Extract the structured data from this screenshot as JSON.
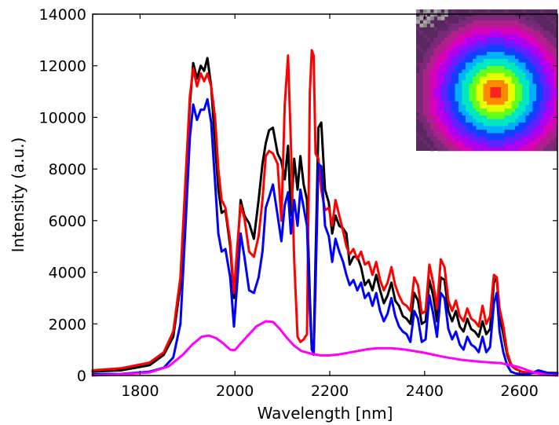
{
  "chart_data": {
    "type": "line",
    "title": "",
    "xlabel": "Wavelength [nm]",
    "ylabel": "Intensity (a.u.)",
    "xlim": [
      1700,
      2680
    ],
    "ylim": [
      0,
      14000
    ],
    "xticks": [
      1800,
      2000,
      2200,
      2400,
      2600
    ],
    "yticks": [
      0,
      2000,
      4000,
      6000,
      8000,
      10000,
      12000,
      14000
    ],
    "grid": false,
    "legend": "none",
    "series": [
      {
        "color": "#000000",
        "x": [
          1700,
          1760,
          1820,
          1850,
          1870,
          1885,
          1895,
          1905,
          1912,
          1920,
          1928,
          1935,
          1942,
          1950,
          1958,
          1965,
          1972,
          1980,
          1990,
          1998,
          2005,
          2012,
          2020,
          2030,
          2040,
          2050,
          2058,
          2065,
          2072,
          2080,
          2090,
          2098,
          2105,
          2112,
          2118,
          2125,
          2132,
          2138,
          2145,
          2152,
          2158,
          2162,
          2166,
          2170,
          2176,
          2182,
          2190,
          2198,
          2205,
          2212,
          2220,
          2228,
          2235,
          2242,
          2250,
          2258,
          2266,
          2274,
          2282,
          2290,
          2298,
          2306,
          2314,
          2322,
          2330,
          2338,
          2346,
          2354,
          2362,
          2370,
          2378,
          2386,
          2394,
          2402,
          2410,
          2418,
          2426,
          2434,
          2442,
          2450,
          2458,
          2466,
          2474,
          2482,
          2490,
          2498,
          2506,
          2514,
          2522,
          2530,
          2538,
          2546,
          2552,
          2558,
          2566,
          2574,
          2582,
          2592,
          2605,
          2620,
          2640,
          2660,
          2680
        ],
        "y": [
          150,
          200,
          400,
          800,
          1500,
          3500,
          7000,
          10500,
          12100,
          11500,
          12000,
          11800,
          12300,
          11200,
          9000,
          7200,
          6300,
          6400,
          5000,
          3000,
          4800,
          6800,
          6200,
          5900,
          5300,
          6800,
          8200,
          9000,
          9500,
          9600,
          8600,
          8300,
          7600,
          8900,
          6200,
          8400,
          7200,
          8500,
          7400,
          6800,
          3000,
          1000,
          900,
          4500,
          9600,
          9800,
          7200,
          6700,
          5500,
          6200,
          5800,
          5700,
          5500,
          4300,
          4600,
          4600,
          4200,
          3500,
          3700,
          3300,
          3900,
          3300,
          2800,
          3100,
          3600,
          2900,
          2700,
          2300,
          2200,
          2000,
          3200,
          2900,
          2000,
          2100,
          3700,
          3100,
          2100,
          3800,
          3700,
          2500,
          2100,
          2500,
          1900,
          1700,
          2200,
          1800,
          1700,
          1500,
          2100,
          1600,
          1800,
          3600,
          3800,
          2300,
          1600,
          800,
          400,
          250,
          150,
          100,
          100,
          100,
          100
        ]
      },
      {
        "color": "#ff0000",
        "x": [
          1700,
          1760,
          1820,
          1850,
          1870,
          1885,
          1895,
          1905,
          1912,
          1920,
          1928,
          1935,
          1942,
          1950,
          1958,
          1965,
          1972,
          1980,
          1990,
          1998,
          2005,
          2012,
          2020,
          2030,
          2040,
          2050,
          2058,
          2065,
          2072,
          2080,
          2090,
          2098,
          2105,
          2112,
          2118,
          2125,
          2132,
          2138,
          2145,
          2152,
          2158,
          2162,
          2166,
          2170,
          2176,
          2182,
          2190,
          2198,
          2205,
          2212,
          2220,
          2228,
          2235,
          2242,
          2250,
          2258,
          2266,
          2274,
          2282,
          2290,
          2298,
          2306,
          2314,
          2322,
          2330,
          2338,
          2346,
          2354,
          2362,
          2370,
          2378,
          2386,
          2394,
          2402,
          2410,
          2418,
          2426,
          2434,
          2442,
          2450,
          2458,
          2466,
          2474,
          2482,
          2490,
          2498,
          2506,
          2514,
          2522,
          2530,
          2538,
          2546,
          2552,
          2558,
          2566,
          2574,
          2582,
          2592,
          2605,
          2620,
          2640,
          2660,
          2680
        ],
        "y": [
          200,
          280,
          500,
          900,
          1700,
          3800,
          7300,
          10800,
          11900,
          11200,
          11700,
          11400,
          11700,
          11200,
          10000,
          8000,
          6800,
          6500,
          5200,
          3200,
          5000,
          6600,
          6100,
          4800,
          4600,
          5400,
          6800,
          8500,
          8700,
          8600,
          8200,
          6000,
          10500,
          12400,
          9000,
          4500,
          1500,
          1300,
          1400,
          1600,
          11000,
          12600,
          12400,
          8600,
          8400,
          7200,
          6400,
          6500,
          5800,
          6800,
          6200,
          5600,
          5000,
          4700,
          4900,
          4500,
          4800,
          4300,
          4400,
          3900,
          4400,
          3700,
          3300,
          3600,
          4200,
          3500,
          3100,
          2800,
          2700,
          2500,
          3800,
          3500,
          2400,
          2500,
          4300,
          3600,
          2600,
          4500,
          4200,
          2900,
          2500,
          2900,
          2300,
          2100,
          2600,
          2200,
          2100,
          1900,
          2700,
          2000,
          2300,
          3900,
          3800,
          2600,
          1900,
          900,
          450,
          250,
          150,
          100,
          100,
          100,
          100
        ]
      },
      {
        "color": "#0000ff",
        "x": [
          1700,
          1760,
          1820,
          1850,
          1870,
          1885,
          1895,
          1905,
          1912,
          1920,
          1928,
          1935,
          1942,
          1950,
          1958,
          1965,
          1972,
          1980,
          1990,
          1998,
          2005,
          2012,
          2020,
          2030,
          2040,
          2050,
          2058,
          2065,
          2072,
          2080,
          2090,
          2098,
          2105,
          2112,
          2118,
          2125,
          2132,
          2138,
          2145,
          2152,
          2158,
          2162,
          2166,
          2170,
          2176,
          2182,
          2190,
          2198,
          2205,
          2212,
          2220,
          2228,
          2235,
          2242,
          2250,
          2258,
          2266,
          2274,
          2282,
          2290,
          2298,
          2306,
          2314,
          2322,
          2330,
          2338,
          2346,
          2354,
          2362,
          2370,
          2378,
          2386,
          2394,
          2402,
          2410,
          2418,
          2426,
          2434,
          2442,
          2450,
          2458,
          2466,
          2474,
          2482,
          2490,
          2498,
          2506,
          2514,
          2522,
          2530,
          2538,
          2546,
          2552,
          2558,
          2566,
          2574,
          2582,
          2592,
          2605,
          2620,
          2640,
          2660,
          2680
        ],
        "y": [
          50,
          60,
          150,
          300,
          700,
          2000,
          5500,
          9200,
          10500,
          9900,
          10300,
          10300,
          10700,
          9800,
          7500,
          5500,
          4800,
          4900,
          3800,
          1900,
          3600,
          5500,
          4600,
          3300,
          3200,
          3800,
          4800,
          6500,
          6900,
          7400,
          6200,
          5200,
          6600,
          7100,
          5500,
          6800,
          5800,
          7200,
          6500,
          5800,
          2500,
          1100,
          800,
          3500,
          8200,
          8100,
          5800,
          5400,
          4400,
          5300,
          4800,
          4400,
          3900,
          3500,
          3700,
          3300,
          3600,
          3000,
          3200,
          2700,
          3200,
          2500,
          2100,
          2400,
          3000,
          2300,
          1900,
          1700,
          1600,
          1300,
          2500,
          2200,
          1300,
          1400,
          3100,
          2400,
          1500,
          3200,
          3000,
          1800,
          1400,
          1700,
          1200,
          1000,
          1500,
          1200,
          1100,
          900,
          1500,
          900,
          1100,
          2800,
          3200,
          1700,
          900,
          400,
          150,
          80,
          50,
          50,
          200,
          100,
          80
        ]
      },
      {
        "color": "#ff00ff",
        "x": [
          1700,
          1760,
          1820,
          1860,
          1890,
          1910,
          1930,
          1945,
          1960,
          1975,
          1990,
          2000,
          2010,
          2025,
          2045,
          2065,
          2080,
          2095,
          2110,
          2125,
          2140,
          2160,
          2180,
          2200,
          2220,
          2250,
          2280,
          2300,
          2330,
          2360,
          2400,
          2440,
          2480,
          2520,
          2560,
          2600,
          2630,
          2650,
          2670,
          2680
        ],
        "y": [
          0,
          50,
          120,
          350,
          800,
          1200,
          1500,
          1550,
          1450,
          1250,
          1000,
          980,
          1200,
          1500,
          1900,
          2100,
          2080,
          1800,
          1450,
          1150,
          950,
          850,
          780,
          780,
          820,
          920,
          1020,
          1060,
          1060,
          1000,
          880,
          720,
          600,
          530,
          480,
          320,
          120,
          40,
          10,
          0
        ]
      }
    ]
  },
  "inset": {
    "type": "beam-profile-image"
  }
}
